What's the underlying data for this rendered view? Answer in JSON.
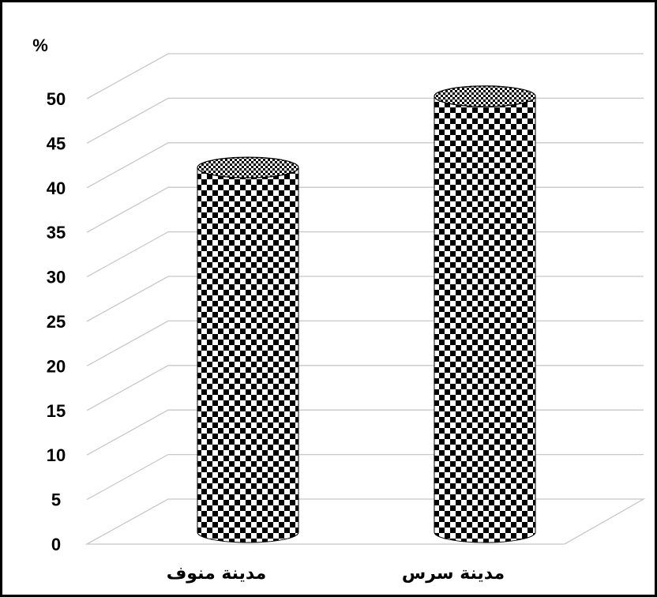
{
  "chart_data": {
    "type": "bar",
    "style": "3d-cylinder",
    "fill_pattern": "checkerboard",
    "categories": [
      "مدينة منوف",
      "مدينة سرس"
    ],
    "values": [
      40,
      48
    ],
    "unit_label": "%",
    "title": "",
    "xlabel": "",
    "ylabel": "",
    "ylim": [
      0,
      50
    ],
    "yticks": [
      0,
      5,
      10,
      15,
      20,
      25,
      30,
      35,
      40,
      45,
      50
    ],
    "grid": true,
    "legend": false
  },
  "colors": {
    "grid": "#c8c8c8",
    "bar_dark": "#000000",
    "bar_light": "#ffffff",
    "frame": "#000000"
  }
}
